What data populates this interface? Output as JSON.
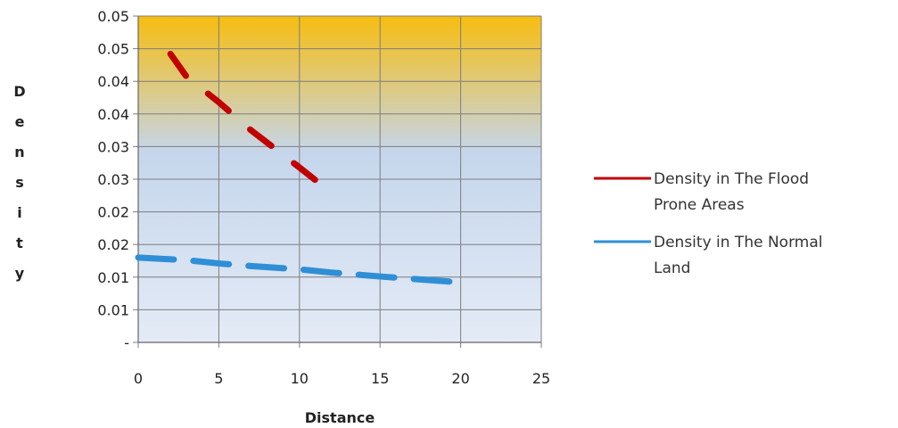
{
  "chart_data": {
    "type": "line",
    "xlabel": "Distance",
    "ylabel": "Density",
    "xlim": [
      0,
      25
    ],
    "ylim": [
      0,
      0.05
    ],
    "x_ticks": [
      "0",
      "5",
      "10",
      "15",
      "20",
      "25"
    ],
    "y_ticks": [
      "-",
      "0.01",
      "0.01",
      "0.02",
      "0.02",
      "0.03",
      "0.03",
      "0.04",
      "0.04",
      "0.05",
      "0.05"
    ],
    "grid": true,
    "legend_position": "right",
    "background_gradient": [
      "#f7bd10",
      "#c5d6ec",
      "#e4ebf6"
    ],
    "series": [
      {
        "name": "Density in The Flood Prone Areas",
        "legend_lines": [
          "Density in The Flood",
          "Prone Areas"
        ],
        "color": "#c00000",
        "style": "dashed",
        "points": [
          [
            2,
            0.0442
          ],
          [
            3,
            0.0407
          ],
          [
            5,
            0.0368
          ],
          [
            7,
            0.0325
          ],
          [
            10,
            0.0268
          ],
          [
            12,
            0.0229
          ]
        ]
      },
      {
        "name": "Density in The Normal Land",
        "legend_lines": [
          "Density in The Normal",
          "Land"
        ],
        "color": "#2f8fd6",
        "style": "dashed",
        "points": [
          [
            0,
            0.013
          ],
          [
            3,
            0.0126
          ],
          [
            5,
            0.0121
          ],
          [
            7,
            0.0117
          ],
          [
            10,
            0.0112
          ],
          [
            12,
            0.0107
          ],
          [
            15,
            0.0101
          ],
          [
            20,
            0.0092
          ]
        ]
      }
    ]
  }
}
